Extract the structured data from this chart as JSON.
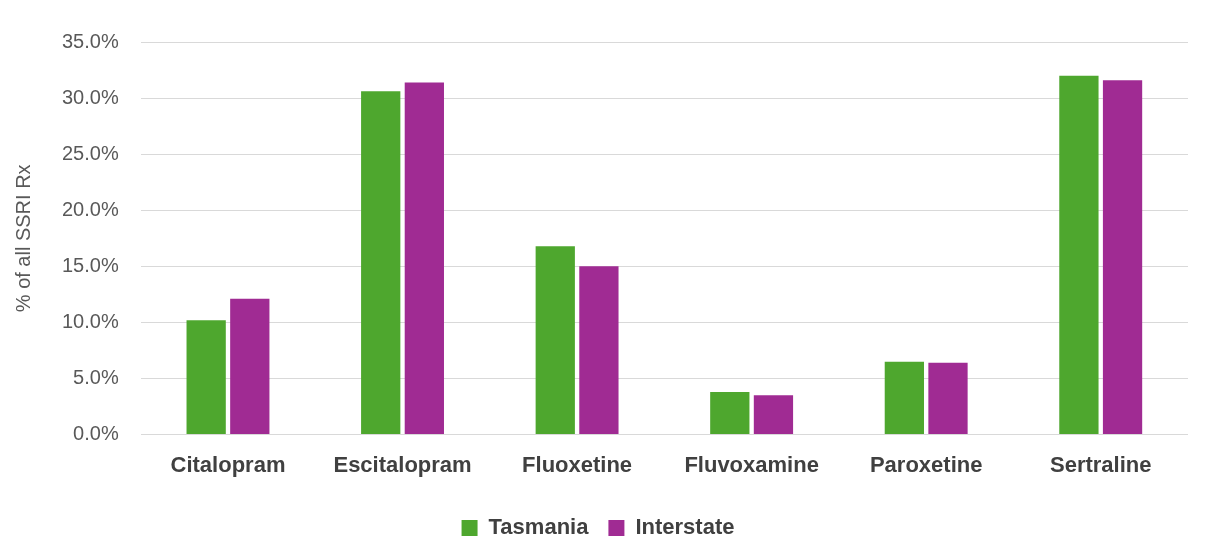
{
  "chart_data": {
    "type": "bar",
    "ylabel": "% of all SSRI Rx",
    "categories": [
      "Citalopram",
      "Escitalopram",
      "Fluoxetine",
      "Fluvoxamine",
      "Paroxetine",
      "Sertraline"
    ],
    "series": [
      {
        "name": "Tasmania",
        "color": "#4ea72e",
        "values": [
          10.2,
          30.6,
          16.8,
          3.8,
          6.5,
          32.0
        ]
      },
      {
        "name": "Interstate",
        "color": "#a02b93",
        "values": [
          12.1,
          31.4,
          15.0,
          3.5,
          6.4,
          31.6
        ]
      }
    ],
    "ylim": [
      0,
      35
    ],
    "yticks": [
      {
        "value": 0,
        "label": "0.0%"
      },
      {
        "value": 5,
        "label": "5.0%"
      },
      {
        "value": 10,
        "label": "10.0%"
      },
      {
        "value": 15,
        "label": "15.0%"
      },
      {
        "value": 20,
        "label": "20.0%"
      },
      {
        "value": 25,
        "label": "25.0%"
      },
      {
        "value": 30,
        "label": "30.0%"
      },
      {
        "value": 35,
        "label": "35.0%"
      }
    ],
    "grid": "y",
    "legend": "bottom"
  }
}
